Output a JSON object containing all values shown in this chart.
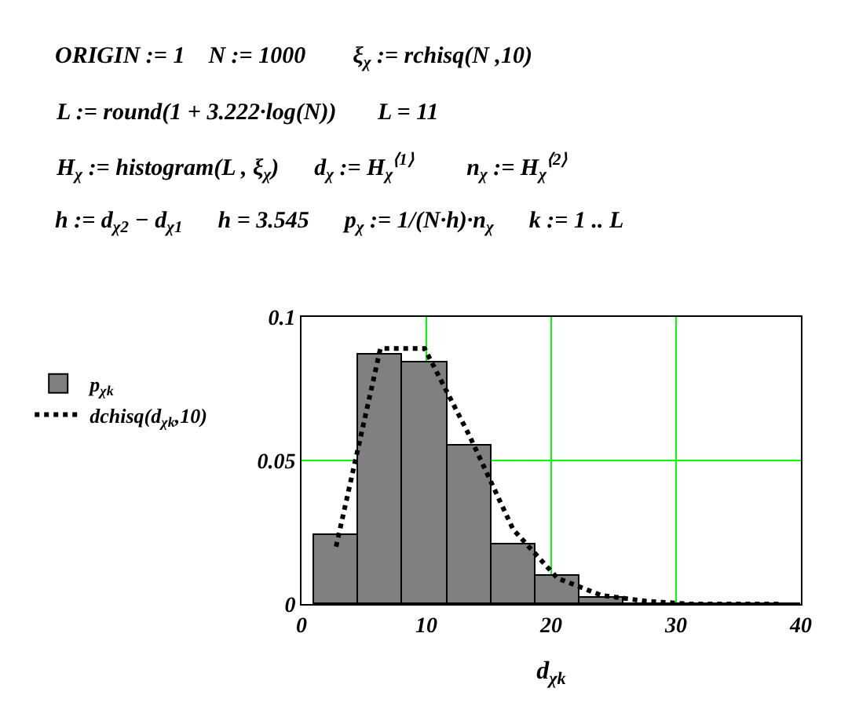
{
  "chart_data": {
    "type": "histogram",
    "annotations": [
      "ORIGIN := 1    N := 1000        ξ$_{χ}$ := rchisq(N ,10)",
      "L := round(1 + 3.222·log(N))       L = 11",
      "H$_{χ}$ := histogram(L , ξ$_{χ}$)      d$_{χ}$ := H$_{χ}$$^{⟨1⟩}$         n$_{χ}$ := H$_{χ}$$^{⟨2⟩}$",
      "h := d$_{χ2}$ − d$_{χ1}$      h = 3.545      p$_{χ}$ := 1/(N·h)·n$_{χ}$      k := 1 .. L"
    ],
    "xlabel": "d$_{χk}$",
    "series": [
      {
        "name": "p$_{χk}$",
        "color": "#808080",
        "bins": [
          1.0,
          4.545,
          8.09,
          11.635,
          15.18,
          18.725,
          22.27,
          25.815,
          29.36,
          32.905,
          36.45,
          39.995
        ],
        "values": [
          0.024,
          0.087,
          0.084,
          0.055,
          0.021,
          0.01,
          0.002,
          0,
          0,
          0,
          0
        ]
      },
      {
        "type": "line",
        "name": "dchisq(d$_{χk}$,10)",
        "color": "#000000",
        "line_style": "dotted",
        "x": [
          2.77,
          6.32,
          9.86,
          13.41,
          16.95,
          20.5,
          24.04,
          27.59,
          31.13,
          34.68,
          38.22
        ],
        "values": [
          0.02,
          0.089,
          0.089,
          0.059,
          0.026,
          0.009,
          0.003,
          0.001,
          0,
          0,
          0
        ]
      }
    ],
    "xlim": [
      0,
      40
    ],
    "xticks": [
      0,
      10,
      20,
      30,
      40
    ],
    "ylim": [
      0,
      0.1
    ],
    "yticks": [
      0,
      0.05,
      0.1
    ],
    "grid": true,
    "legend": "left"
  }
}
